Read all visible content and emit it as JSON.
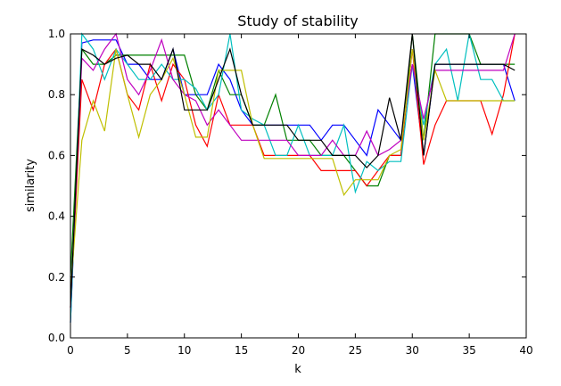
{
  "chart_data": {
    "type": "line",
    "title": "Study of stability",
    "xlabel": "k",
    "ylabel": "similarity",
    "xlim": [
      0,
      40
    ],
    "ylim": [
      0.0,
      1.0
    ],
    "grid": false,
    "x_ticks": [
      0,
      5,
      10,
      15,
      20,
      25,
      30,
      35,
      40
    ],
    "x_tick_labels": [
      "0",
      "5",
      "10",
      "15",
      "20",
      "25",
      "30",
      "35",
      "40"
    ],
    "y_ticks": [
      0.0,
      0.2,
      0.4,
      0.6,
      0.8,
      1.0
    ],
    "y_tick_labels": [
      "0.0",
      "0.2",
      "0.4",
      "0.6",
      "0.8",
      "1.0"
    ],
    "x": [
      0,
      1,
      2,
      3,
      4,
      5,
      6,
      7,
      8,
      9,
      10,
      11,
      12,
      13,
      14,
      15,
      16,
      17,
      18,
      19,
      20,
      21,
      22,
      23,
      24,
      25,
      26,
      27,
      28,
      29,
      30,
      31,
      32,
      33,
      34,
      35,
      36,
      37,
      38,
      39
    ],
    "series": [
      {
        "color": "#0000ff",
        "values": [
          0.05,
          0.97,
          0.98,
          0.98,
          0.98,
          0.9,
          0.9,
          0.85,
          0.85,
          0.95,
          0.8,
          0.8,
          0.8,
          0.9,
          0.85,
          0.75,
          0.7,
          0.7,
          0.7,
          0.7,
          0.7,
          0.7,
          0.65,
          0.7,
          0.7,
          0.65,
          0.6,
          0.75,
          0.7,
          0.65,
          0.9,
          0.6,
          0.9,
          0.9,
          0.9,
          0.9,
          0.9,
          0.9,
          0.9,
          0.78
        ]
      },
      {
        "color": "#008000",
        "values": [
          0.2,
          0.95,
          0.9,
          0.9,
          0.93,
          0.93,
          0.93,
          0.93,
          0.93,
          0.93,
          0.93,
          0.8,
          0.75,
          0.88,
          0.8,
          0.8,
          0.7,
          0.7,
          0.8,
          0.65,
          0.65,
          0.65,
          0.6,
          0.6,
          0.6,
          0.55,
          0.5,
          0.5,
          0.6,
          0.6,
          1.0,
          0.65,
          1.0,
          1.0,
          1.0,
          1.0,
          0.9,
          0.9,
          0.9,
          0.9
        ]
      },
      {
        "color": "#ff0000",
        "values": [
          0.1,
          0.85,
          0.75,
          0.9,
          0.95,
          0.8,
          0.75,
          0.9,
          0.78,
          0.9,
          0.85,
          0.7,
          0.63,
          0.8,
          0.7,
          0.7,
          0.7,
          0.6,
          0.6,
          0.6,
          0.6,
          0.6,
          0.55,
          0.55,
          0.55,
          0.55,
          0.5,
          0.55,
          0.6,
          0.6,
          0.95,
          0.57,
          0.7,
          0.78,
          0.78,
          0.78,
          0.78,
          0.67,
          0.8,
          1.0
        ]
      },
      {
        "color": "#00bfbf",
        "values": [
          0.05,
          1.0,
          0.95,
          0.85,
          0.95,
          0.9,
          0.85,
          0.85,
          0.9,
          0.85,
          0.85,
          0.82,
          0.75,
          0.8,
          1.0,
          0.75,
          0.72,
          0.7,
          0.6,
          0.6,
          0.7,
          0.6,
          0.6,
          0.6,
          0.7,
          0.48,
          0.58,
          0.55,
          0.58,
          0.58,
          0.9,
          0.7,
          0.9,
          0.95,
          0.78,
          1.0,
          0.85,
          0.85,
          0.78,
          0.78
        ]
      },
      {
        "color": "#bf00bf",
        "values": [
          0.1,
          0.92,
          0.88,
          0.95,
          1.0,
          0.85,
          0.8,
          0.88,
          0.98,
          0.85,
          0.8,
          0.78,
          0.7,
          0.75,
          0.7,
          0.65,
          0.65,
          0.65,
          0.65,
          0.65,
          0.6,
          0.6,
          0.6,
          0.65,
          0.6,
          0.6,
          0.68,
          0.6,
          0.62,
          0.65,
          0.9,
          0.72,
          0.88,
          0.88,
          0.88,
          0.88,
          0.88,
          0.88,
          0.88,
          1.0
        ]
      },
      {
        "color": "#bfbf00",
        "values": [
          0.15,
          0.65,
          0.78,
          0.68,
          0.95,
          0.8,
          0.66,
          0.8,
          0.85,
          0.92,
          0.8,
          0.66,
          0.66,
          0.88,
          0.88,
          0.88,
          0.7,
          0.59,
          0.59,
          0.59,
          0.59,
          0.59,
          0.59,
          0.59,
          0.47,
          0.52,
          0.52,
          0.52,
          0.6,
          0.62,
          0.95,
          0.65,
          0.88,
          0.78,
          0.78,
          0.78,
          0.78,
          0.78,
          0.78,
          0.78
        ]
      },
      {
        "color": "#000000",
        "values": [
          0.1,
          0.95,
          0.93,
          0.9,
          0.92,
          0.93,
          0.9,
          0.9,
          0.85,
          0.95,
          0.75,
          0.75,
          0.75,
          0.85,
          0.95,
          0.8,
          0.7,
          0.7,
          0.7,
          0.7,
          0.65,
          0.65,
          0.65,
          0.6,
          0.6,
          0.6,
          0.56,
          0.6,
          0.79,
          0.65,
          1.0,
          0.6,
          0.9,
          0.9,
          0.9,
          0.9,
          0.9,
          0.9,
          0.9,
          0.88
        ]
      }
    ]
  }
}
